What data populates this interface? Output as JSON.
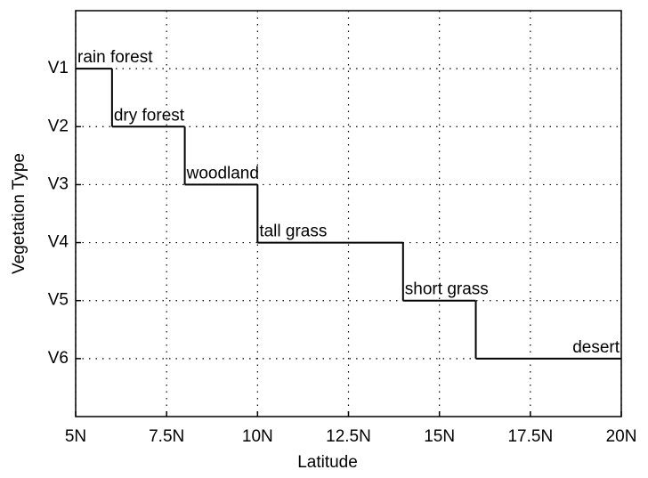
{
  "chart_data": {
    "type": "step",
    "x": [
      5,
      6,
      8,
      10,
      14,
      16,
      20
    ],
    "values": [
      1,
      2,
      3,
      4,
      5,
      6,
      6
    ],
    "step_labels": [
      "rain forest",
      "dry forest",
      "woodland",
      "tall grass",
      "short grass",
      "desert"
    ],
    "color": "#000000",
    "xlabel": "Latitude",
    "ylabel": "Vegetation Type",
    "xlim": [
      5,
      20
    ],
    "xticks": [
      {
        "value": 5,
        "label": "5N"
      },
      {
        "value": 7.5,
        "label": "7.5N"
      },
      {
        "value": 10,
        "label": "10N"
      },
      {
        "value": 12.5,
        "label": "12.5N"
      },
      {
        "value": 15,
        "label": "15N"
      },
      {
        "value": 17.5,
        "label": "17.5N"
      },
      {
        "value": 20,
        "label": "20N"
      }
    ],
    "ylim": [
      0,
      7
    ],
    "y_reversed": true,
    "yticks": [
      {
        "value": 1,
        "label": "V1"
      },
      {
        "value": 2,
        "label": "V2"
      },
      {
        "value": 3,
        "label": "V3"
      },
      {
        "value": 4,
        "label": "V4"
      },
      {
        "value": 5,
        "label": "V5"
      },
      {
        "value": 6,
        "label": "V6"
      }
    ],
    "grid": true
  }
}
